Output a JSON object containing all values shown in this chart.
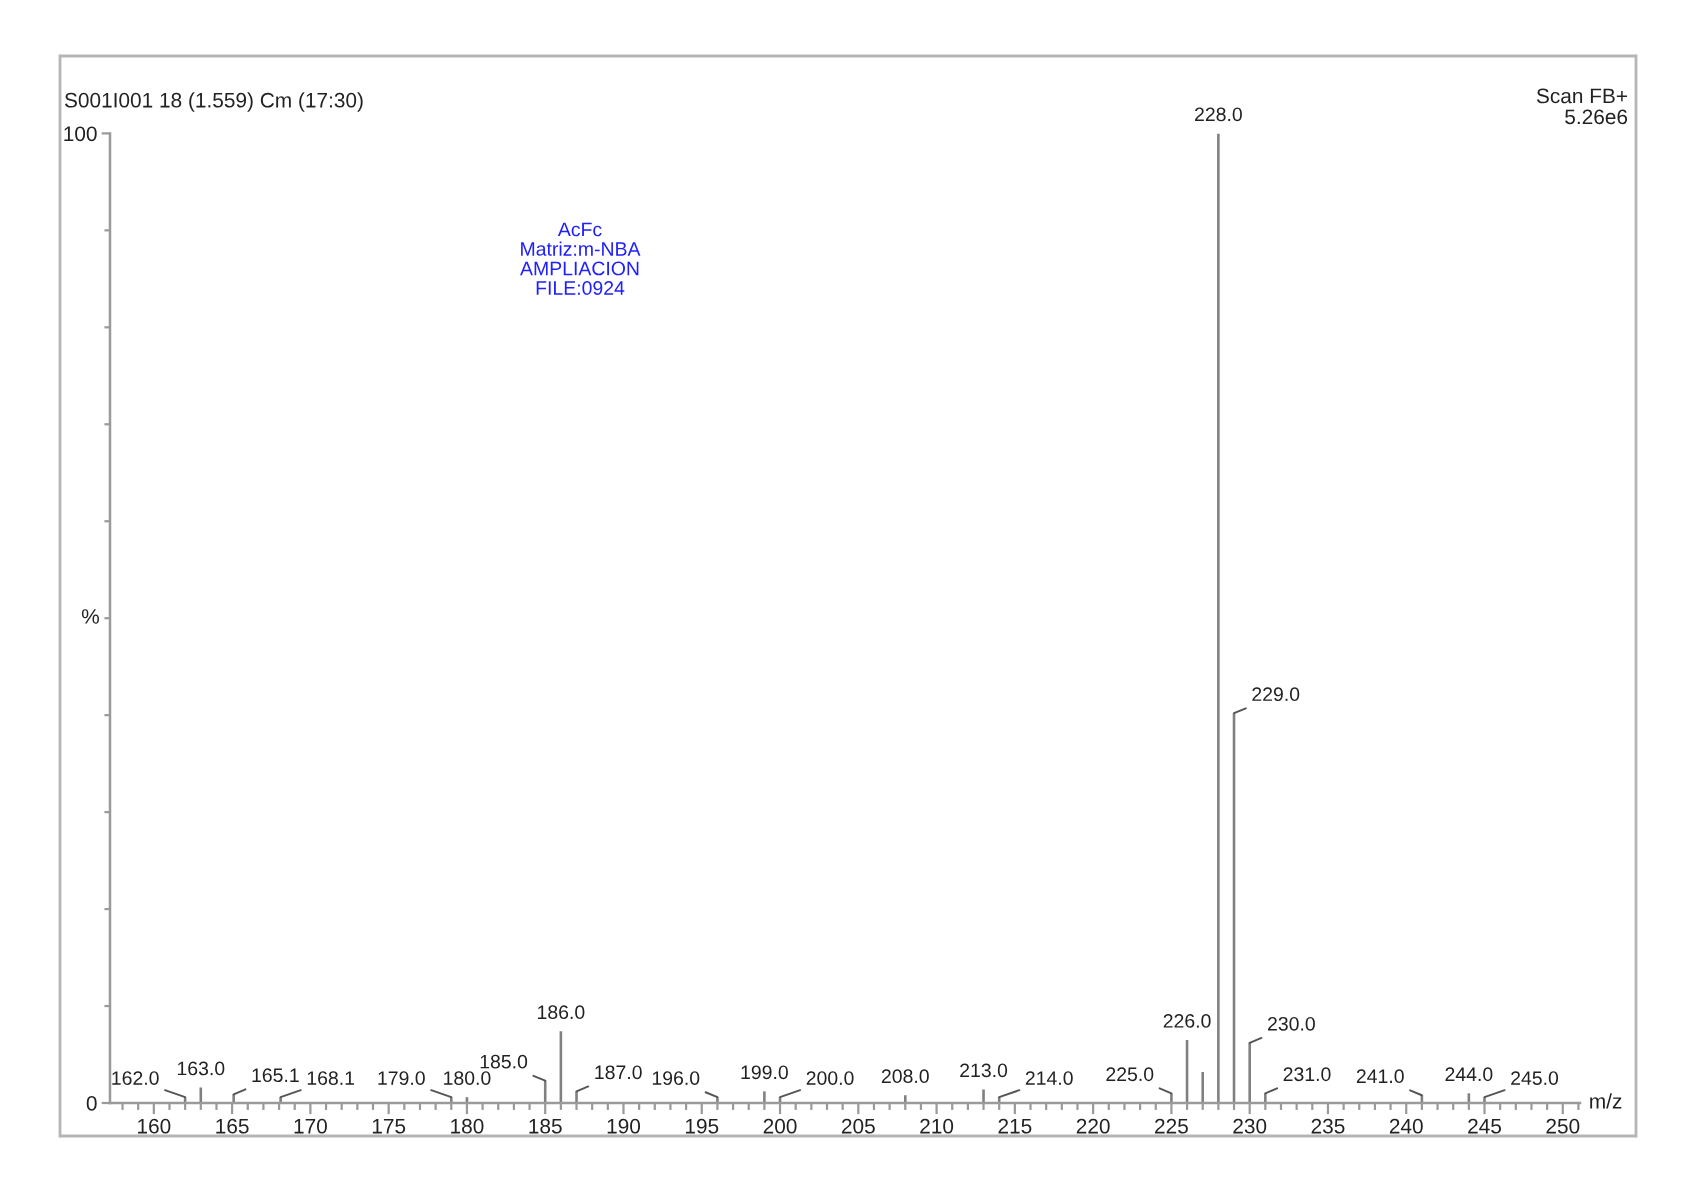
{
  "chart_data": {
    "type": "bar",
    "title": "S001I001 18 (1.559) Cm (17:30)",
    "xlabel": "m/z",
    "ylabel": "%",
    "x": [
      162.0,
      163.0,
      165.1,
      168.1,
      179.0,
      180.0,
      185.0,
      186.0,
      187.0,
      196.0,
      199.0,
      200.0,
      208.0,
      213.0,
      214.0,
      225.0,
      226.0,
      227.0,
      228.0,
      229.0,
      230.0,
      231.0,
      241.0,
      244.0,
      245.0
    ],
    "values": [
      0.6,
      1.6,
      0.9,
      0.6,
      0.6,
      0.6,
      2.3,
      7.4,
      1.2,
      0.6,
      1.2,
      0.6,
      0.8,
      1.4,
      0.6,
      1.0,
      6.5,
      3.2,
      100,
      40.2,
      6.2,
      1.0,
      0.8,
      1.0,
      0.6
    ],
    "color": "#808080",
    "xlim": [
      157.2,
      251.1
    ],
    "xticks": [
      {
        "value": 158,
        "label": null
      },
      {
        "value": 159,
        "label": null
      },
      160,
      {
        "value": 161,
        "label": null
      },
      {
        "value": 162,
        "label": null
      },
      {
        "value": 163,
        "label": null
      },
      {
        "value": 164,
        "label": null
      },
      165,
      {
        "value": 166,
        "label": null
      },
      {
        "value": 167,
        "label": null
      },
      {
        "value": 168,
        "label": null
      },
      {
        "value": 169,
        "label": null
      },
      170,
      {
        "value": 171,
        "label": null
      },
      {
        "value": 172,
        "label": null
      },
      {
        "value": 173,
        "label": null
      },
      {
        "value": 174,
        "label": null
      },
      175,
      {
        "value": 176,
        "label": null
      },
      {
        "value": 177,
        "label": null
      },
      {
        "value": 178,
        "label": null
      },
      {
        "value": 179,
        "label": null
      },
      180,
      {
        "value": 181,
        "label": null
      },
      {
        "value": 182,
        "label": null
      },
      {
        "value": 183,
        "label": null
      },
      {
        "value": 184,
        "label": null
      },
      185,
      {
        "value": 186,
        "label": null
      },
      {
        "value": 187,
        "label": null
      },
      {
        "value": 188,
        "label": null
      },
      {
        "value": 189,
        "label": null
      },
      190,
      {
        "value": 191,
        "label": null
      },
      {
        "value": 192,
        "label": null
      },
      {
        "value": 193,
        "label": null
      },
      {
        "value": 194,
        "label": null
      },
      195,
      {
        "value": 196,
        "label": null
      },
      {
        "value": 197,
        "label": null
      },
      {
        "value": 198,
        "label": null
      },
      {
        "value": 199,
        "label": null
      },
      200,
      {
        "value": 201,
        "label": null
      },
      {
        "value": 202,
        "label": null
      },
      {
        "value": 203,
        "label": null
      },
      {
        "value": 204,
        "label": null
      },
      205,
      {
        "value": 206,
        "label": null
      },
      {
        "value": 207,
        "label": null
      },
      {
        "value": 208,
        "label": null
      },
      {
        "value": 209,
        "label": null
      },
      210,
      {
        "value": 211,
        "label": null
      },
      {
        "value": 212,
        "label": null
      },
      {
        "value": 213,
        "label": null
      },
      {
        "value": 214,
        "label": null
      },
      215,
      {
        "value": 216,
        "label": null
      },
      {
        "value": 217,
        "label": null
      },
      {
        "value": 218,
        "label": null
      },
      {
        "value": 219,
        "label": null
      },
      220,
      {
        "value": 221,
        "label": null
      },
      {
        "value": 222,
        "label": null
      },
      {
        "value": 223,
        "label": null
      },
      {
        "value": 224,
        "label": null
      },
      225,
      {
        "value": 226,
        "label": null
      },
      {
        "value": 227,
        "label": null
      },
      {
        "value": 228,
        "label": null
      },
      {
        "value": 229,
        "label": null
      },
      230,
      {
        "value": 231,
        "label": null
      },
      {
        "value": 232,
        "label": null
      },
      {
        "value": 233,
        "label": null
      },
      {
        "value": 234,
        "label": null
      },
      235,
      {
        "value": 236,
        "label": null
      },
      {
        "value": 237,
        "label": null
      },
      {
        "value": 238,
        "label": null
      },
      {
        "value": 239,
        "label": null
      },
      240,
      {
        "value": 241,
        "label": null
      },
      {
        "value": 242,
        "label": null
      },
      {
        "value": 243,
        "label": null
      },
      {
        "value": 244,
        "label": null
      },
      245,
      {
        "value": 246,
        "label": null
      },
      {
        "value": 247,
        "label": null
      },
      {
        "value": 248,
        "label": null
      },
      {
        "value": 249,
        "label": null
      },
      250,
      {
        "value": 251,
        "label": null
      }
    ],
    "ylim": [
      0,
      100
    ],
    "yticks": [
      0,
      {
        "value": 10,
        "label": null
      },
      {
        "value": 20,
        "label": null
      },
      {
        "value": 30,
        "label": null
      },
      {
        "value": 40,
        "label": null
      },
      {
        "value": 50,
        "label": null
      },
      {
        "value": 60,
        "label": null
      },
      {
        "value": 70,
        "label": null
      },
      {
        "value": 80,
        "label": null
      },
      {
        "value": 90,
        "label": null
      },
      100
    ],
    "annotations": [
      "Scan FB+\n5.26e6",
      "AcFc\nMatriz:m-NBA\nAMPLIACION\nFILE:0924",
      {
        "text": "162.0",
        "x": 162.0,
        "y": 0.6
      },
      {
        "text": "163.0",
        "x": 163.0,
        "y": 1.6
      },
      {
        "text": "165.1",
        "x": 165.1,
        "y": 0.9
      },
      {
        "text": "168.1",
        "x": 168.1,
        "y": 0.6
      },
      {
        "text": "179.0",
        "x": 179.0,
        "y": 0.6
      },
      {
        "text": "180.0",
        "x": 180.0,
        "y": 0.6
      },
      {
        "text": "185.0",
        "x": 185.0,
        "y": 2.3
      },
      {
        "text": "186.0",
        "x": 186.0,
        "y": 7.4
      },
      {
        "text": "187.0",
        "x": 187.0,
        "y": 1.2
      },
      {
        "text": "196.0",
        "x": 196.0,
        "y": 0.6
      },
      {
        "text": "199.0",
        "x": 199.0,
        "y": 1.2
      },
      {
        "text": "200.0",
        "x": 200.0,
        "y": 0.6
      },
      {
        "text": "208.0",
        "x": 208.0,
        "y": 0.8
      },
      {
        "text": "213.0",
        "x": 213.0,
        "y": 1.4
      },
      {
        "text": "214.0",
        "x": 214.0,
        "y": 0.6
      },
      {
        "text": "225.0",
        "x": 225.0,
        "y": 1.0
      },
      {
        "text": "226.0",
        "x": 226.0,
        "y": 6.5
      },
      {
        "text": "228.0",
        "x": 228.0,
        "y": 100
      },
      {
        "text": "229.0",
        "x": 229.0,
        "y": 40.2
      },
      {
        "text": "230.0",
        "x": 230.0,
        "y": 6.2
      },
      {
        "text": "231.0",
        "x": 231.0,
        "y": 1.0
      },
      {
        "text": "241.0",
        "x": 241.0,
        "y": 0.8
      },
      {
        "text": "244.0",
        "x": 244.0,
        "y": 1.0
      },
      {
        "text": "245.0",
        "x": 245.0,
        "y": 0.6
      }
    ]
  }
}
